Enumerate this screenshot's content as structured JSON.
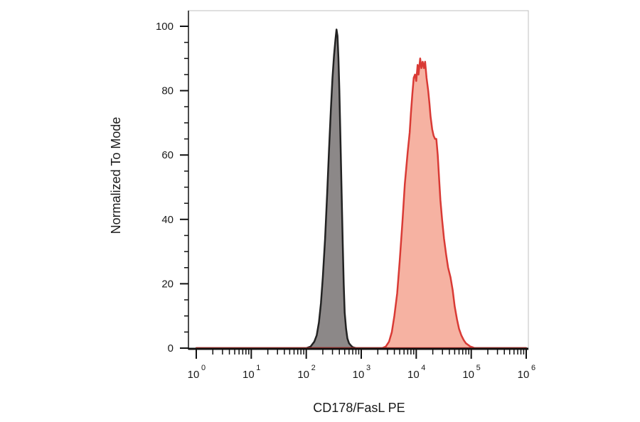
{
  "chart_data": {
    "type": "area",
    "title": "",
    "xlabel": "CD178/FasL PE",
    "ylabel": "Normalized To Mode",
    "x_scale": "log",
    "xlim": [
      1,
      1000000
    ],
    "ylim": [
      0,
      105
    ],
    "grid": false,
    "legend": "none",
    "x_ticks": [
      {
        "base": "10",
        "exp": "0",
        "value": 1
      },
      {
        "base": "10",
        "exp": "1",
        "value": 10
      },
      {
        "base": "10",
        "exp": "2",
        "value": 100
      },
      {
        "base": "10",
        "exp": "3",
        "value": 1000
      },
      {
        "base": "10",
        "exp": "4",
        "value": 10000
      },
      {
        "base": "10",
        "exp": "5",
        "value": 100000
      },
      {
        "base": "10",
        "exp": "6",
        "value": 1000000
      }
    ],
    "y_ticks": [
      "0",
      "20",
      "40",
      "60",
      "80",
      "100"
    ],
    "series": [
      {
        "fill": "#8c8888",
        "stroke": "#222222",
        "x": [
          1,
          100,
          120,
          140,
          155,
          170,
          185,
          200,
          220,
          240,
          260,
          280,
          300,
          320,
          340,
          355,
          370,
          385,
          400,
          420,
          440,
          460,
          480,
          500,
          530,
          560,
          600,
          650,
          700,
          800,
          1000000
        ],
        "y": [
          0,
          0,
          0.5,
          2,
          4,
          8,
          14,
          22,
          34,
          48,
          62,
          74,
          84,
          91,
          96,
          99,
          97,
          90,
          80,
          64,
          48,
          33,
          20,
          11,
          6,
          3,
          1.5,
          0.8,
          0.3,
          0,
          0
        ]
      },
      {
        "fill": "#f6b2a2",
        "stroke": "#d93a35",
        "x": [
          1,
          2400,
          2800,
          3200,
          3600,
          4000,
          4500,
          5000,
          5600,
          6200,
          7000,
          7600,
          8000,
          8500,
          9000,
          9500,
          10000,
          10600,
          11000,
          11800,
          12400,
          13100,
          13800,
          14500,
          15400,
          16500,
          17400,
          18200,
          19500,
          20700,
          22000,
          23200,
          24600,
          26200,
          27500,
          29500,
          32000,
          35000,
          38000,
          42000,
          46000,
          50000,
          55000,
          60000,
          66000,
          73000,
          80000,
          88000,
          96000,
          105000,
          115000,
          130000,
          1000000
        ],
        "y": [
          0,
          0,
          0.5,
          2,
          5,
          10,
          17,
          27,
          39,
          51,
          61,
          67,
          73,
          79,
          84,
          85,
          83,
          88,
          85,
          90,
          87,
          89,
          87,
          89,
          84,
          80,
          76,
          72,
          68,
          66,
          65,
          65,
          60,
          52,
          46,
          40,
          34,
          29,
          25,
          22,
          18,
          13,
          9,
          6,
          4,
          2.5,
          1.5,
          1,
          0.5,
          0.3,
          0,
          0,
          0
        ]
      }
    ]
  }
}
